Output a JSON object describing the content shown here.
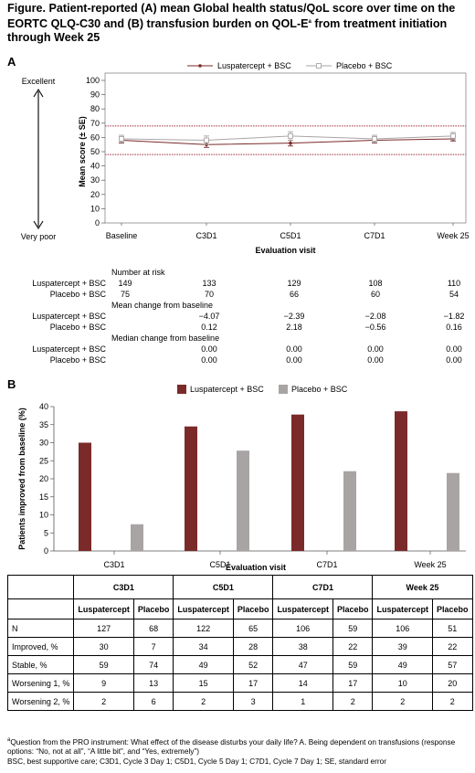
{
  "title": "Figure. Patient-reported (A) mean Global health status/QoL score over time on the EORTC QLQ-C30 and (B) transfusion burden on QOL-E",
  "title_sup": "a",
  "title_end": " from treatment initiation through Week 25",
  "panel_a_label": "A",
  "panel_b_label": "B",
  "colors": {
    "luspatercept": "#7b2a2a",
    "placebo": "#a9a4a4",
    "ref_line": "#9a2a3a"
  },
  "chart_data": [
    {
      "type": "line",
      "categories": [
        "Baseline",
        "C3D1",
        "C5D1",
        "C7D1",
        "Week 25"
      ],
      "series": [
        {
          "name": "Luspatercept + BSC",
          "values": [
            58,
            55,
            56,
            58,
            59
          ],
          "se": [
            2,
            2,
            2,
            2,
            1.5
          ]
        },
        {
          "name": "Placebo + BSC",
          "values": [
            59,
            58,
            61,
            59,
            61
          ],
          "se": [
            2.5,
            3,
            3,
            2.5,
            2.5
          ]
        }
      ],
      "reference_lines": [
        48,
        68
      ],
      "ylabel": "Mean score (± SE)",
      "xlabel": "Evaluation visit",
      "ylim": [
        0,
        100
      ],
      "yticks": [
        "0",
        "10",
        "20",
        "30",
        "40",
        "50",
        "60",
        "70",
        "80",
        "90",
        "100"
      ],
      "scale_top": "Excellent",
      "scale_bottom": "Very poor",
      "legend": "top"
    },
    {
      "type": "bar",
      "categories": [
        "C3D1",
        "C5D1",
        "C7D1",
        "Week 25"
      ],
      "series": [
        {
          "name": "Luspatercept + BSC",
          "values": [
            30,
            34.5,
            37.8,
            38.7
          ]
        },
        {
          "name": "Placebo + BSC",
          "values": [
            7.4,
            27.8,
            22.1,
            21.6
          ]
        }
      ],
      "ylabel": "Patients improved from baseline (%)",
      "xlabel": "Evaluation visit",
      "ylim": [
        0,
        40
      ],
      "yticks": [
        "0",
        "5",
        "10",
        "15",
        "20",
        "25",
        "30",
        "35",
        "40"
      ],
      "legend": "top"
    }
  ],
  "risk_table": {
    "sections": [
      {
        "header": "Number at risk",
        "rows": [
          {
            "label": "Luspatercept + BSC",
            "values": [
              "149",
              "133",
              "129",
              "108",
              "110"
            ]
          },
          {
            "label": "Placebo + BSC",
            "values": [
              "75",
              "70",
              "66",
              "60",
              "54"
            ]
          }
        ]
      },
      {
        "header": "Mean change from baseline",
        "rows": [
          {
            "label": "Luspatercept + BSC",
            "values": [
              "−4.07",
              "−2.39",
              "−2.08",
              "−1.82"
            ]
          },
          {
            "label": "Placebo + BSC",
            "values": [
              "0.12",
              "2.18",
              "−0.56",
              "0.16"
            ]
          }
        ]
      },
      {
        "header": "Median change from baseline",
        "rows": [
          {
            "label": "Luspatercept + BSC",
            "values": [
              "0.00",
              "0.00",
              "0.00",
              "0.00"
            ]
          },
          {
            "label": "Placebo + BSC",
            "values": [
              "0.00",
              "0.00",
              "0.00",
              "0.00"
            ]
          }
        ]
      }
    ]
  },
  "results_table": {
    "visits": [
      "C3D1",
      "C5D1",
      "C7D1",
      "Week 25"
    ],
    "subheaders": [
      "Luspatercept",
      "Placebo"
    ],
    "rows": [
      {
        "label": "N",
        "values": [
          "127",
          "68",
          "122",
          "65",
          "106",
          "59",
          "106",
          "51"
        ]
      },
      {
        "label": "Improved, %",
        "values": [
          "30",
          "7",
          "34",
          "28",
          "38",
          "22",
          "39",
          "22"
        ]
      },
      {
        "label": "Stable, %",
        "values": [
          "59",
          "74",
          "49",
          "52",
          "47",
          "59",
          "49",
          "57"
        ]
      },
      {
        "label": "Worsening 1, %",
        "values": [
          "9",
          "13",
          "15",
          "17",
          "14",
          "17",
          "10",
          "20"
        ]
      },
      {
        "label": "Worsening 2, %",
        "values": [
          "2",
          "6",
          "2",
          "3",
          "1",
          "2",
          "2",
          "2"
        ]
      }
    ]
  },
  "footnote_sup": "a",
  "footnote_a": "Question from the PRO instrument: What effect of the disease disturbs your daily life? A. Being dependent on transfusions (response options: “No, not at all”, “A little bit”, and “Yes, extremely”)",
  "footnote_b": "BSC, best supportive care; C3D1, Cycle 3 Day 1; C5D1, Cycle 5 Day 1; C7D1, Cycle 7 Day 1; SE, standard error"
}
